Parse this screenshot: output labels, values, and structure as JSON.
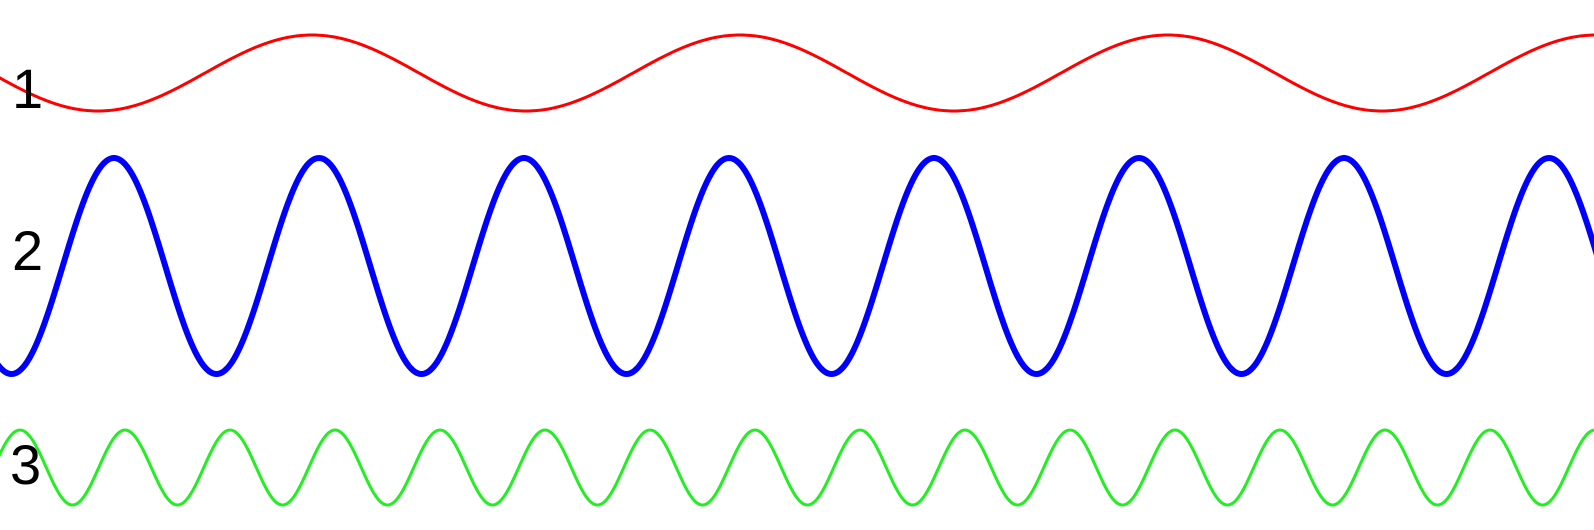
{
  "waves": [
    {
      "label": "1",
      "color": "#ff0000"
    },
    {
      "label": "2",
      "color": "#0000ff"
    },
    {
      "label": "3",
      "color": "#22ee22"
    }
  ]
}
